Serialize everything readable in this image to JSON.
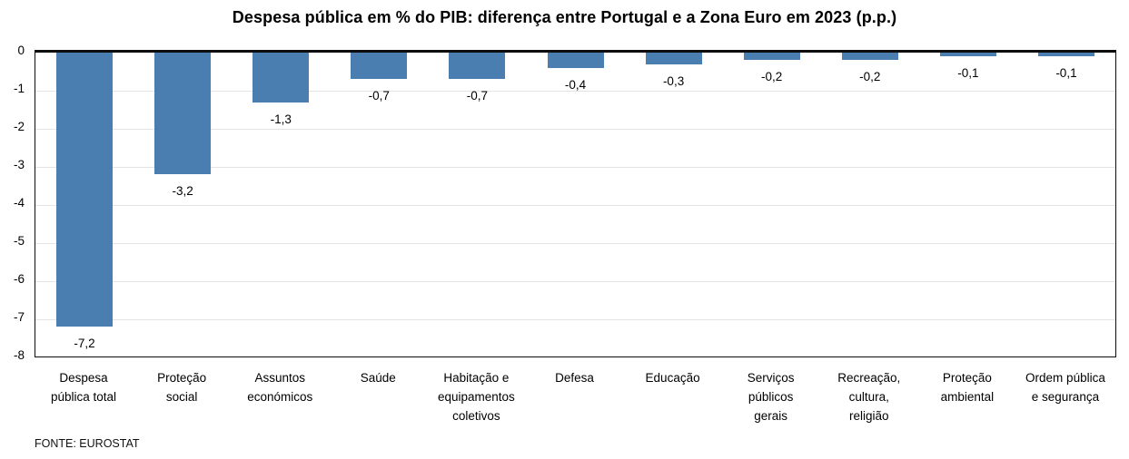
{
  "chart_data": {
    "type": "bar",
    "title": "Despesa pública em % do PIB: diferença entre Portugal e a Zona Euro em 2023 (p.p.)",
    "categories": [
      "Despesa pública total",
      "Proteção social",
      "Assuntos económicos",
      "Saúde",
      "Habitação e equipamentos coletivos",
      "Defesa",
      "Educação",
      "Serviços públicos gerais",
      "Recreação, cultura, religião",
      "Proteção ambiental",
      "Ordem pública e segurança"
    ],
    "category_tick_lines": [
      [
        "Despesa",
        "pública total"
      ],
      [
        "Proteção",
        "social"
      ],
      [
        "Assuntos",
        "económicos"
      ],
      [
        "Saúde"
      ],
      [
        "Habitação e",
        "equipamentos",
        "coletivos"
      ],
      [
        "Defesa"
      ],
      [
        "Educação"
      ],
      [
        "Serviços",
        "públicos",
        "gerais"
      ],
      [
        "Recreação,",
        "cultura,",
        "religião"
      ],
      [
        "Proteção",
        "ambiental"
      ],
      [
        "Ordem pública",
        "e segurança"
      ]
    ],
    "values": [
      -7.2,
      -3.2,
      -1.3,
      -0.7,
      -0.7,
      -0.4,
      -0.3,
      -0.2,
      -0.2,
      -0.1,
      -0.1
    ],
    "value_labels": [
      "-7,2",
      "-3,2",
      "-1,3",
      "-0,7",
      "-0,7",
      "-0,4",
      "-0,3",
      "-0,2",
      "-0,2",
      "-0,1",
      "-0,1"
    ],
    "xlabel": "",
    "ylabel": "",
    "ylim": [
      -8,
      0
    ],
    "y_ticks": [
      0,
      -1,
      -2,
      -3,
      -4,
      -5,
      -6,
      -7,
      -8
    ],
    "y_tick_labels": [
      "0",
      "-1",
      "-2",
      "-3",
      "-4",
      "-5",
      "-6",
      "-7",
      "-8"
    ],
    "grid": "horizontal-light",
    "legend": "none",
    "bar_color": "#4A7EB0",
    "axis_color": "#0d0d0d"
  },
  "source": "FONTE: EUROSTAT"
}
